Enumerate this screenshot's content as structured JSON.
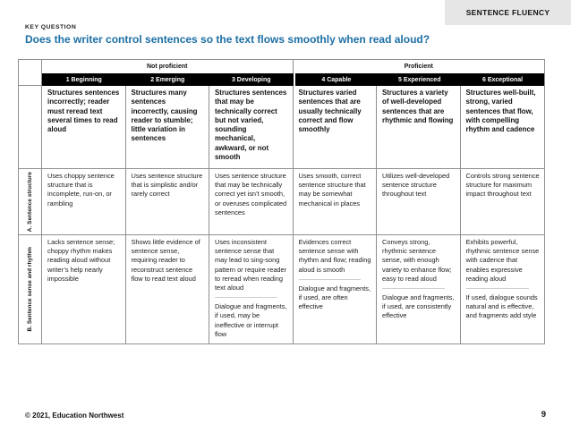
{
  "page": {
    "tag": "SENTENCE FLUENCY",
    "key_question_label": "KEY QUESTION",
    "question": "Does the writer control sentences so the text flows smoothly when read aloud?",
    "footer": {
      "copyright": "© 2021, Education Northwest",
      "page_number": "9"
    },
    "colors": {
      "question_text": "#1d6fa5",
      "tag_background": "#e6e6e6",
      "level_band_background": "#000000",
      "level_band_text": "#ffffff",
      "table_border": "#8f8f8f"
    }
  },
  "rubric": {
    "groups": [
      {
        "label": "Not proficient"
      },
      {
        "label": "Proficient"
      }
    ],
    "levels": [
      {
        "id": "1 Beginning",
        "descriptor": "Structures sentences incorrectly; reader must reread text several times to read aloud"
      },
      {
        "id": "2 Emerging",
        "descriptor": "Structures many sentences incorrectly, causing reader to stumble; little variation in sentences"
      },
      {
        "id": "3 Developing",
        "descriptor": "Structures sentences that may be technically correct but not varied, sounding mechanical, awkward, or not smooth"
      },
      {
        "id": "4 Capable",
        "descriptor": "Structures varied sentences that are usually technically correct and flow smoothly"
      },
      {
        "id": "5 Experienced",
        "descriptor": "Structures a variety of well-developed sentences that are rhythmic and flowing"
      },
      {
        "id": "6 Exceptional",
        "descriptor": "Structures well-built, strong, varied sentences that flow, with compelling rhythm and cadence"
      }
    ],
    "rows": [
      {
        "label": "A. Sentence structure",
        "cells": [
          [
            "Uses choppy sentence structure that is incomplete, run-on, or rambling"
          ],
          [
            "Uses sentence structure that is simplistic and/or rarely correct"
          ],
          [
            "Uses sentence structure that may be technically correct yet isn’t smooth, or overuses complicated sentences"
          ],
          [
            "Uses smooth, correct sentence structure that may be somewhat mechanical in places"
          ],
          [
            "Utilizes well-developed sentence structure throughout text"
          ],
          [
            "Controls strong sentence structure for maximum impact throughout text"
          ]
        ]
      },
      {
        "label": "B. Sentence sense and rhythm",
        "cells": [
          [
            "Lacks sentence sense; choppy rhythm makes reading aloud without writer’s help nearly impossible"
          ],
          [
            "Shows little evidence of sentence sense, requiring reader to reconstruct sentence flow to read text aloud"
          ],
          [
            "Uses inconsistent sentence sense that may lead to sing-song pattern or require reader to reread when reading text aloud",
            "Dialogue and fragments, if used, may be ineffective or interrupt flow"
          ],
          [
            "Evidences correct sentence sense with rhythm and flow; reading aloud is smooth",
            "Dialogue and fragments, if used, are often effective"
          ],
          [
            "Conveys strong, rhythmic sentence sense, with enough variety to enhance flow; easy to read aloud",
            "Dialogue and fragments, if used, are consistently effective"
          ],
          [
            "Exhibits powerful, rhythmic sentence sense with cadence that enables expressive reading aloud",
            "If used, dialogue sounds natural and is effective, and fragments add style"
          ]
        ]
      }
    ]
  }
}
